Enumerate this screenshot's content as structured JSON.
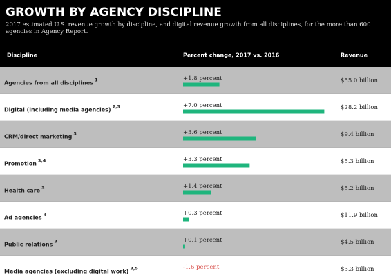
{
  "header": {
    "title": "GROWTH BY AGENCY DISCIPLINE",
    "subtitle": "2017 estimated U.S. revenue growth by discipline, and digital revenue growth from all disciplines, for the more than 600 agencies in Agency Report."
  },
  "table": {
    "columns": [
      "Discipline",
      "Percent change, 2017 vs. 2016",
      "Revenue"
    ],
    "bar_color": "#1fb57d",
    "negative_color": "#d9534f",
    "rows": [
      {
        "discipline": "Agencies from all disciplines",
        "note": "1",
        "change": 1.8,
        "change_label": "+1.8 percent",
        "revenue": "$55.0 billion"
      },
      {
        "discipline": "Digital (including media agencies)",
        "note": "2,3",
        "change": 7.0,
        "change_label": "+7.0 percent",
        "revenue": "$28.2 billion"
      },
      {
        "discipline": "CRM/direct marketing",
        "note": "3",
        "change": 3.6,
        "change_label": "+3.6 percent",
        "revenue": "$9.4 billion"
      },
      {
        "discipline": "Promotion",
        "note": "3,4",
        "change": 3.3,
        "change_label": "+3.3 percent",
        "revenue": "$5.3 billion"
      },
      {
        "discipline": "Health care",
        "note": "3",
        "change": 1.4,
        "change_label": "+1.4 percent",
        "revenue": "$5.2 billion"
      },
      {
        "discipline": "Ad agencies",
        "note": "3",
        "change": 0.3,
        "change_label": "+0.3 percent",
        "revenue": "$11.9 billion"
      },
      {
        "discipline": "Public relations",
        "note": "3",
        "change": 0.1,
        "change_label": "+0.1 percent",
        "revenue": "$4.5 billion"
      },
      {
        "discipline": "Media agencies (excluding digital work)",
        "note": "3,5",
        "change": -1.6,
        "change_label": "-1.6 percent",
        "revenue": "$3.3 billion"
      }
    ]
  }
}
